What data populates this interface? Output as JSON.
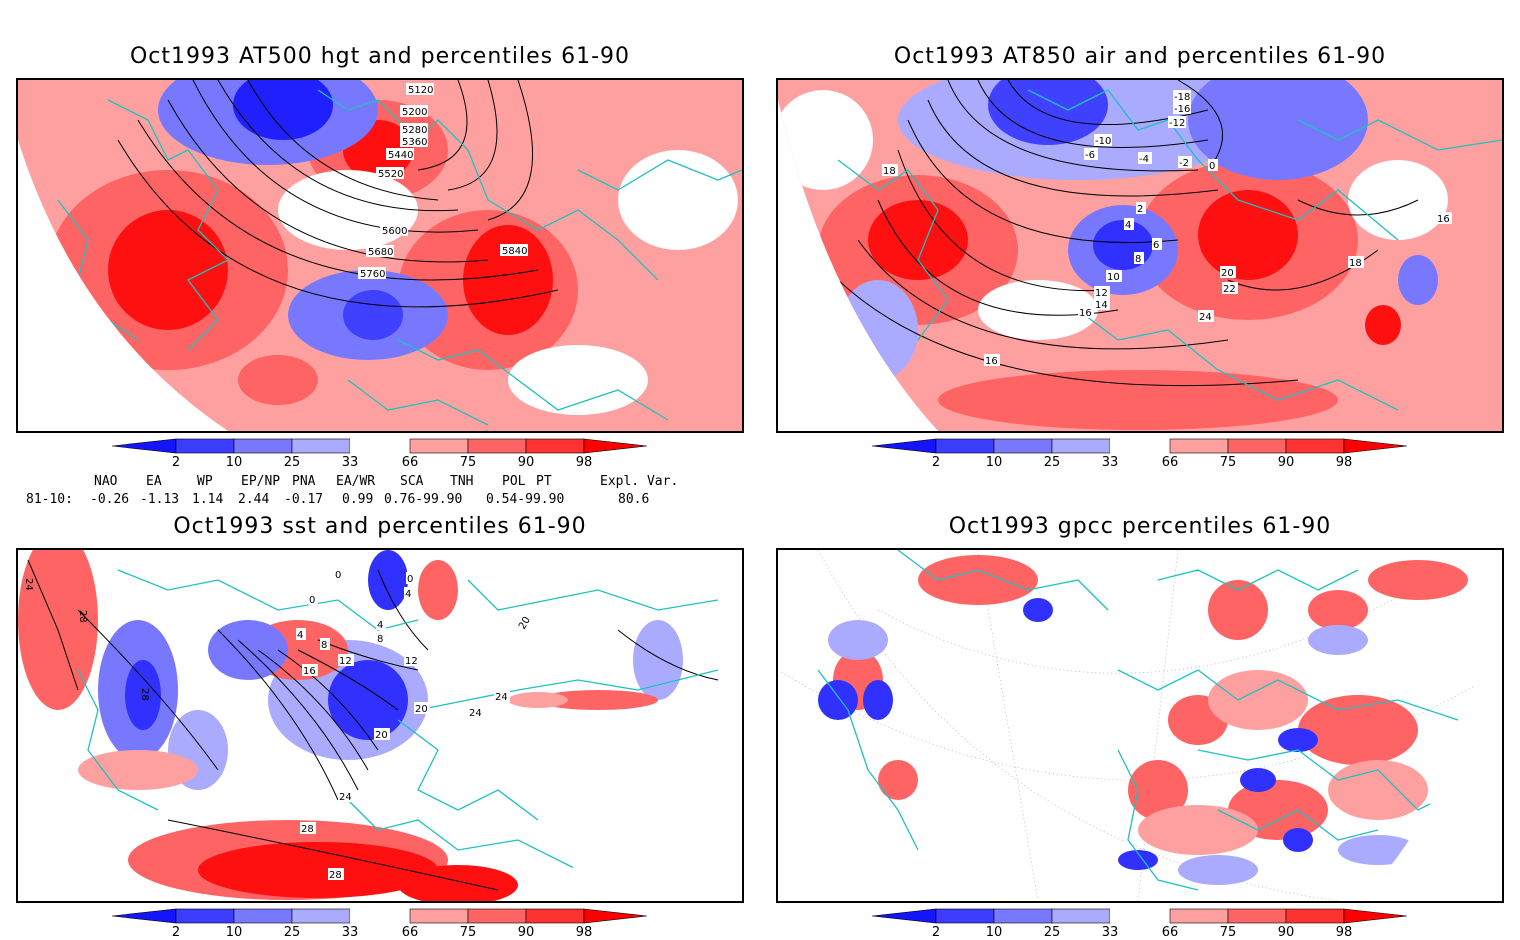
{
  "panels": {
    "tl": {
      "title": "Oct1993 AT500 hgt and percentiles 61-90",
      "contour_labels": [
        "5120",
        "5200",
        "5280",
        "5360",
        "5440",
        "5520",
        "5600",
        "5680",
        "5760",
        "5840"
      ]
    },
    "tr": {
      "title": "Oct1993 AT850 air and percentiles 61-90",
      "contour_labels": [
        "-18",
        "-16",
        "-12",
        "-10",
        "-6",
        "-4",
        "-2",
        "0",
        "2",
        "4",
        "6",
        "8",
        "10",
        "12",
        "14",
        "16",
        "18",
        "20",
        "22",
        "24",
        "18",
        "16",
        "16"
      ]
    },
    "bl": {
      "title": "Oct1993 sst and percentiles 61-90",
      "contour_labels": [
        "24",
        "28",
        "28",
        "0",
        "0",
        "0",
        "4",
        "4",
        "4",
        "8",
        "8",
        "12",
        "12",
        "16",
        "20",
        "20",
        "20",
        "24",
        "24",
        "24",
        "28",
        "28"
      ]
    },
    "br": {
      "title": "Oct1993 gpcc percentiles 61-90"
    }
  },
  "colorbar": {
    "labels": [
      "2",
      "10",
      "25",
      "33",
      "66",
      "75",
      "90",
      "98"
    ],
    "colors": {
      "lt2": "#1414ff",
      "b2_10": "#3c3cff",
      "b10_25": "#7878ff",
      "b25_33": "#aaaaff",
      "mid": "#ffffff",
      "r66_75": "#ffa0a0",
      "r75_90": "#ff6464",
      "r90_98": "#ff3232",
      "gt98": "#ff0000"
    }
  },
  "indices": {
    "headers": [
      "NAO",
      "EA",
      "WP",
      "EP/NP",
      "PNA",
      "EA/WR",
      "SCA",
      "TNH",
      "POL",
      "PT",
      "Expl. Var."
    ],
    "row_label": "81-10:",
    "values": [
      "-0.26",
      "-1.13",
      "1.14",
      "2.44",
      "-0.17",
      "0.99",
      "0.76-99.90",
      "0.54-99.90",
      "80.6"
    ]
  },
  "map_colors": {
    "coast": "#20c0c0",
    "contour": "#000000",
    "grid": "#a0a0a0"
  }
}
